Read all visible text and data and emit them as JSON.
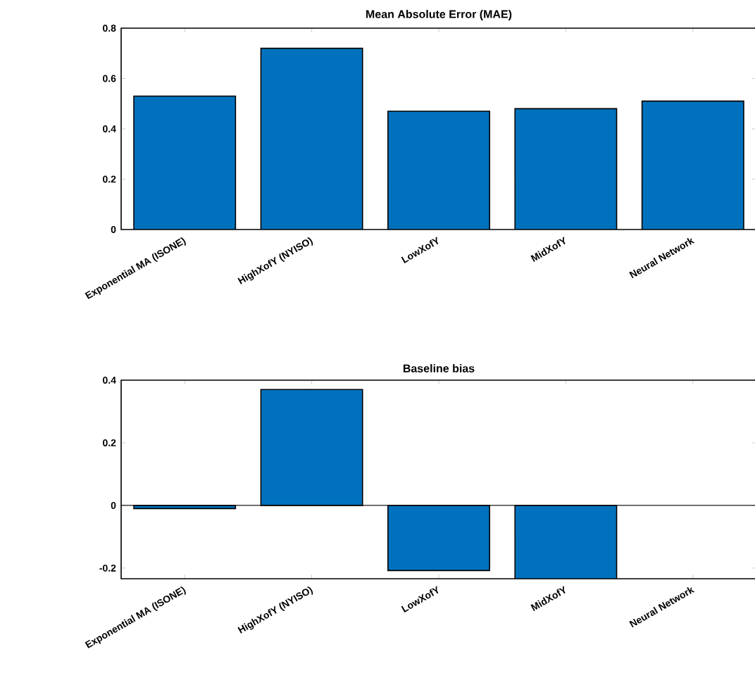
{
  "chart_data": [
    {
      "type": "bar",
      "title": "Mean Absolute Error (MAE)",
      "categories": [
        "Exponential MA (ISONE)",
        "HighXofY (NYISO)",
        "LowXofY",
        "MidXofY",
        "Neural Network"
      ],
      "values": [
        0.53,
        0.72,
        0.47,
        0.48,
        0.51
      ],
      "color": "#0072bd",
      "ylim": [
        0,
        0.8
      ],
      "yticks": [
        0,
        0.2,
        0.4,
        0.6,
        0.8
      ]
    },
    {
      "type": "bar",
      "title": "Baseline bias",
      "categories": [
        "Exponential MA (ISONE)",
        "HighXofY (NYISO)",
        "LowXofY",
        "MidXofY",
        "Neural Network"
      ],
      "values": [
        -0.01,
        0.37,
        -0.208,
        -0.234,
        null
      ],
      "color": "#0072bd",
      "ylim": [
        -0.234,
        0.4
      ],
      "yticks": [
        -0.2,
        0,
        0.2,
        0.4
      ]
    }
  ]
}
